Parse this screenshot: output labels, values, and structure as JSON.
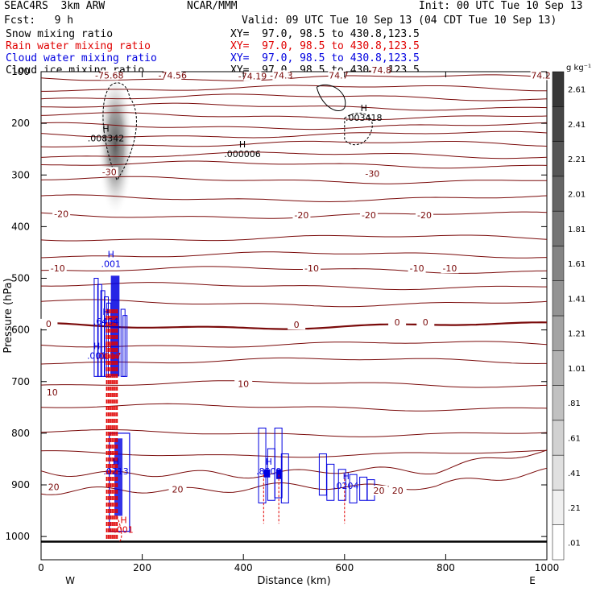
{
  "header": {
    "left1": "SEAC4RS  3km ARW",
    "center1": "NCAR/MMM",
    "right1": "Init: 00 UTC Tue 10 Sep 13",
    "left2": "Fcst:   9 h",
    "right2": "Valid: 09 UTC Tue 10 Sep 13 (04 CDT Tue 10 Sep 13)"
  },
  "fields": [
    {
      "name": "Snow mixing ratio",
      "xy": "XY=  97.0, 98.5 to 430.8,123.5",
      "color": "#000000"
    },
    {
      "name": "Rain water mixing ratio",
      "xy": "XY=  97.0, 98.5 to 430.8,123.5",
      "color": "#e00000"
    },
    {
      "name": "Cloud water mixing ratio",
      "xy": "XY=  97.0, 98.5 to 430.8,123.5",
      "color": "#0000e0"
    },
    {
      "name": "Cloud ice mixing ratio",
      "xy": "XY=  97.0, 98.5 to 430.8,123.5",
      "color": "#000000"
    }
  ],
  "chart_data": {
    "type": "contour",
    "xlabel": "Distance (km)",
    "ylabel": "Pressure (hPa)",
    "xlim": [
      0,
      1000
    ],
    "ylim": [
      1045,
      100
    ],
    "x_ticks": [
      0,
      200,
      400,
      600,
      800,
      1000
    ],
    "y_ticks": [
      100,
      200,
      300,
      400,
      500,
      600,
      700,
      800,
      900,
      1000
    ],
    "x_end_labels": [
      "W",
      "E"
    ],
    "colorbar": {
      "unit": "g kg⁻¹",
      "levels": [
        ".01",
        ".21",
        ".41",
        ".61",
        ".81",
        "1.01",
        "1.21",
        "1.41",
        "1.61",
        "1.81",
        "2.01",
        "2.21",
        "2.41",
        "2.61"
      ]
    },
    "temperature_labels": [
      {
        "text": "-75.68",
        "x": 135,
        "p": 110
      },
      {
        "text": "-74.56",
        "x": 260,
        "p": 110
      },
      {
        "text": "-74.19",
        "x": 418,
        "p": 112
      },
      {
        "text": "-74.3",
        "x": 475,
        "p": 110
      },
      {
        "text": "-74.7",
        "x": 585,
        "p": 110
      },
      {
        "text": "-74.8",
        "x": 670,
        "p": 100
      },
      {
        "text": "-74.2",
        "x": 985,
        "p": 110
      },
      {
        "text": "-30",
        "x": 135,
        "p": 297
      },
      {
        "text": "-30",
        "x": 655,
        "p": 300
      },
      {
        "text": "-20",
        "x": 40,
        "p": 378
      },
      {
        "text": "-20",
        "x": 515,
        "p": 381
      },
      {
        "text": "-20",
        "x": 648,
        "p": 381
      },
      {
        "text": "-20",
        "x": 758,
        "p": 381
      },
      {
        "text": "-10",
        "x": 33,
        "p": 484
      },
      {
        "text": "-10",
        "x": 535,
        "p": 484
      },
      {
        "text": "-10",
        "x": 743,
        "p": 484
      },
      {
        "text": "-10",
        "x": 808,
        "p": 484
      },
      {
        "text": "0",
        "x": 15,
        "p": 591
      },
      {
        "text": "0",
        "x": 505,
        "p": 593
      },
      {
        "text": "0",
        "x": 704,
        "p": 588
      },
      {
        "text": "0",
        "x": 760,
        "p": 588
      },
      {
        "text": "10",
        "x": 22,
        "p": 724
      },
      {
        "text": "10",
        "x": 400,
        "p": 707
      },
      {
        "text": "20",
        "x": 25,
        "p": 907
      },
      {
        "text": "20",
        "x": 270,
        "p": 912
      },
      {
        "text": "20",
        "x": 668,
        "p": 914
      },
      {
        "text": "20",
        "x": 705,
        "p": 914
      }
    ],
    "maxima": [
      {
        "text": ".008342",
        "x": 125,
        "p": 235,
        "color": "#000000"
      },
      {
        "text": ".000006",
        "x": 395,
        "p": 265,
        "color": "#000000"
      },
      {
        "text": ".003418",
        "x": 635,
        "p": 195,
        "color": "#000000"
      },
      {
        "text": ".001",
        "x": 135,
        "p": 478,
        "color": "#0000e0"
      },
      {
        "text": ".6464",
        "x": 125,
        "p": 590,
        "color": "#0000e0"
      },
      {
        "text": ".0017",
        "x": 130,
        "p": 657,
        "color": "#e00000"
      },
      {
        "text": ".001",
        "x": 107,
        "p": 656,
        "color": "#0000e0"
      },
      {
        "text": ".0213",
        "x": 145,
        "p": 880,
        "color": "#0000e0"
      },
      {
        "text": ".8509",
        "x": 447,
        "p": 880,
        "color": "#0000e0"
      },
      {
        "text": ".0204",
        "x": 600,
        "p": 908,
        "color": "#0000e0"
      },
      {
        "text": ".001",
        "x": 160,
        "p": 993,
        "color": "#e00000"
      }
    ]
  }
}
